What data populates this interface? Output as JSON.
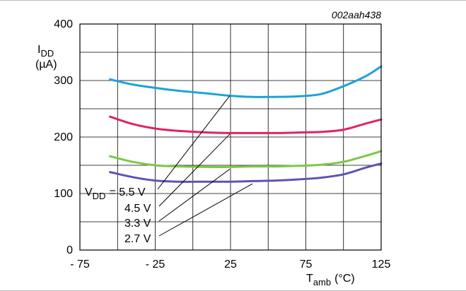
{
  "chart_data": {
    "type": "line",
    "figure_code": "002aah438",
    "ylabel_main": "I",
    "ylabel_sub": "DD",
    "ylabel_unit": "(µA)",
    "xlabel_main": "T",
    "xlabel_sub": "amb",
    "xlabel_unit": "(°C)",
    "xlim": [
      -75,
      125
    ],
    "ylim": [
      0,
      400
    ],
    "x_ticks": [
      -75,
      -25,
      25,
      75,
      125
    ],
    "x_tick_labels": [
      "- 75",
      "- 25",
      "25",
      "75",
      "125"
    ],
    "y_ticks": [
      0,
      100,
      200,
      300,
      400
    ],
    "y_tick_labels": [
      "0",
      "100",
      "200",
      "300",
      "400"
    ],
    "grid": true,
    "series": [
      {
        "label_prefix": "V",
        "label_sub": "DD",
        "label_value": "= 5.5 V",
        "color": "#1ba3d9",
        "x": [
          -55,
          -40,
          -25,
          -10,
          10,
          25,
          40,
          55,
          70,
          85,
          100,
          115,
          125
        ],
        "y": [
          302,
          293,
          287,
          282,
          277,
          273,
          271,
          271,
          272,
          276,
          290,
          308,
          325
        ]
      },
      {
        "label_prefix": "",
        "label_sub": "",
        "label_value": "4.5 V",
        "color": "#e0245e",
        "x": [
          -55,
          -40,
          -25,
          -10,
          10,
          25,
          40,
          55,
          70,
          85,
          100,
          115,
          125
        ],
        "y": [
          236,
          223,
          215,
          211,
          208,
          207,
          207,
          207,
          208,
          209,
          213,
          224,
          231
        ]
      },
      {
        "label_prefix": "",
        "label_sub": "",
        "label_value": "3.3 V",
        "color": "#7ac943",
        "x": [
          -55,
          -40,
          -25,
          -10,
          10,
          25,
          40,
          55,
          70,
          85,
          100,
          115,
          125
        ],
        "y": [
          166,
          156,
          150,
          148,
          147,
          147,
          148,
          148,
          149,
          151,
          156,
          167,
          175
        ]
      },
      {
        "label_prefix": "",
        "label_sub": "",
        "label_value": "2.7 V",
        "color": "#5c54b3",
        "x": [
          -55,
          -40,
          -25,
          -10,
          10,
          25,
          40,
          55,
          70,
          85,
          100,
          115,
          125
        ],
        "y": [
          138,
          129,
          123,
          121,
          121,
          121,
          122,
          123,
          125,
          128,
          134,
          146,
          153
        ]
      }
    ]
  }
}
